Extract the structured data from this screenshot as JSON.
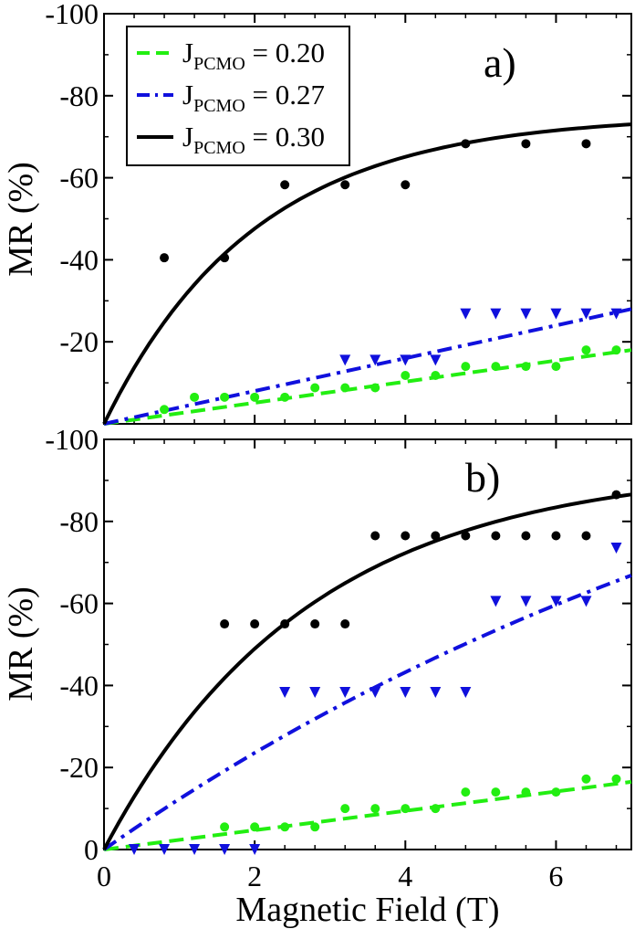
{
  "chart_data": [
    {
      "type": "scatter",
      "panel_label": "a)",
      "xlabel": "",
      "ylabel": "MR (%)",
      "xlim": [
        0,
        7
      ],
      "ylim": [
        0,
        -100
      ],
      "y_ticks": [
        -100,
        -80,
        -60,
        -40,
        -20
      ],
      "y_tick_labels": [
        "-100",
        "-80",
        "-60",
        "-40",
        "-20"
      ],
      "x_ticks": [
        0,
        2,
        4,
        6
      ],
      "x_tick_labels": [],
      "legend": {
        "placement": "top-left",
        "entries": [
          {
            "prefix": "J",
            "sub": "PCMO",
            "suffix": " = 0.20"
          },
          {
            "prefix": "J",
            "sub": "PCMO",
            "suffix": " = 0.27"
          },
          {
            "prefix": "J",
            "sub": "PCMO",
            "suffix": " = 0.30"
          }
        ]
      },
      "series": [
        {
          "name": "J_PCMO = 0.20",
          "color": "#22ee11",
          "marker": "circle",
          "line_style": "dashed",
          "points": [
            [
              0.8,
              -3.5
            ],
            [
              1.2,
              -6.5
            ],
            [
              1.6,
              -6.5
            ],
            [
              2.0,
              -6.5
            ],
            [
              2.4,
              -6.5
            ],
            [
              2.8,
              -8.8
            ],
            [
              3.2,
              -8.8
            ],
            [
              3.6,
              -8.8
            ],
            [
              4.0,
              -11.8
            ],
            [
              4.4,
              -11.8
            ],
            [
              4.8,
              -14.0
            ],
            [
              5.2,
              -14.0
            ],
            [
              5.6,
              -14.0
            ],
            [
              6.0,
              -14.0
            ],
            [
              6.4,
              -18.0
            ],
            [
              6.8,
              -18.0
            ]
          ],
          "fit": [
            [
              0,
              0
            ],
            [
              7,
              -18.0
            ]
          ]
        },
        {
          "name": "J_PCMO = 0.27",
          "color": "#1010dd",
          "marker": "triangle-down",
          "line_style": "dash-dot",
          "points": [
            [
              3.2,
              -15.5
            ],
            [
              3.6,
              -15.5
            ],
            [
              4.0,
              -15.5
            ],
            [
              4.4,
              -15.5
            ],
            [
              4.8,
              -26.8
            ],
            [
              5.2,
              -26.8
            ],
            [
              5.6,
              -26.8
            ],
            [
              6.0,
              -26.8
            ],
            [
              6.4,
              -26.8
            ],
            [
              6.8,
              -26.8
            ]
          ],
          "fit": [
            [
              0,
              0
            ],
            [
              7,
              -28.0
            ]
          ]
        },
        {
          "name": "J_PCMO = 0.30",
          "color": "#000000",
          "marker": "circle",
          "line_style": "solid",
          "points": [
            [
              0.8,
              -40.5
            ],
            [
              1.6,
              -40.5
            ],
            [
              2.4,
              -58.3
            ],
            [
              3.2,
              -58.3
            ],
            [
              4.0,
              -58.3
            ],
            [
              4.8,
              -68.3
            ],
            [
              5.6,
              -68.3
            ],
            [
              6.4,
              -68.3
            ]
          ],
          "fit_model": {
            "A": -75.3,
            "k": 0.5
          }
        }
      ]
    },
    {
      "type": "scatter",
      "panel_label": "b)",
      "xlabel": "Magnetic Field (T)",
      "ylabel": "MR (%)",
      "xlim": [
        0,
        7
      ],
      "ylim": [
        0,
        -100
      ],
      "y_ticks": [
        -100,
        -80,
        -60,
        -40,
        -20,
        0
      ],
      "y_tick_labels": [
        "-100",
        "-80",
        "-60",
        "-40",
        "-20",
        "0"
      ],
      "x_ticks": [
        0,
        2,
        4,
        6
      ],
      "x_tick_labels": [
        "0",
        "2",
        "4",
        "6"
      ],
      "series": [
        {
          "name": "J_PCMO = 0.20",
          "color": "#22ee11",
          "marker": "circle",
          "line_style": "dashed",
          "points": [
            [
              1.6,
              -5.5
            ],
            [
              2.0,
              -5.5
            ],
            [
              2.4,
              -5.5
            ],
            [
              2.8,
              -5.5
            ],
            [
              3.2,
              -10.0
            ],
            [
              3.6,
              -10.0
            ],
            [
              4.0,
              -10.0
            ],
            [
              4.4,
              -10.0
            ],
            [
              4.8,
              -14.0
            ],
            [
              5.2,
              -14.0
            ],
            [
              5.6,
              -14.0
            ],
            [
              6.0,
              -14.0
            ],
            [
              6.4,
              -17.2
            ],
            [
              6.8,
              -17.2
            ]
          ],
          "fit": [
            [
              0,
              0
            ],
            [
              7,
              -16.5
            ]
          ]
        },
        {
          "name": "J_PCMO = 0.27",
          "color": "#1010dd",
          "marker": "triangle-down",
          "line_style": "dash-dot",
          "points": [
            [
              0.4,
              0
            ],
            [
              0.8,
              0
            ],
            [
              1.2,
              0
            ],
            [
              1.6,
              0
            ],
            [
              2.0,
              0
            ],
            [
              2.4,
              -38.3
            ],
            [
              2.8,
              -38.3
            ],
            [
              3.2,
              -38.3
            ],
            [
              3.6,
              -38.3
            ],
            [
              4.0,
              -38.3
            ],
            [
              4.4,
              -38.3
            ],
            [
              4.8,
              -38.3
            ],
            [
              5.2,
              -60.5
            ],
            [
              5.6,
              -60.5
            ],
            [
              6.0,
              -60.5
            ],
            [
              6.4,
              -60.5
            ],
            [
              6.8,
              -73.5
            ]
          ],
          "fit_model": {
            "A": -143.0,
            "k": 0.09
          }
        },
        {
          "name": "J_PCMO = 0.30",
          "color": "#000000",
          "marker": "circle",
          "line_style": "solid",
          "points": [
            [
              1.6,
              -55.0
            ],
            [
              2.0,
              -55.0
            ],
            [
              2.4,
              -55.0
            ],
            [
              2.8,
              -55.0
            ],
            [
              3.2,
              -55.0
            ],
            [
              3.6,
              -76.5
            ],
            [
              4.0,
              -76.5
            ],
            [
              4.4,
              -76.5
            ],
            [
              4.8,
              -76.5
            ],
            [
              5.2,
              -76.5
            ],
            [
              5.6,
              -76.5
            ],
            [
              6.0,
              -76.5
            ],
            [
              6.4,
              -76.5
            ],
            [
              6.8,
              -86.5
            ]
          ],
          "fit_model": {
            "A": -93.6,
            "k": 0.37
          }
        }
      ]
    }
  ]
}
